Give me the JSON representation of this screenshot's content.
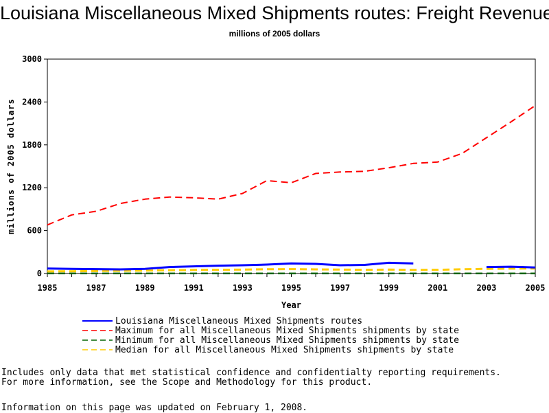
{
  "chart_data": {
    "type": "line",
    "title": "Louisiana Miscellaneous Mixed Shipments routes: Freight Revenue",
    "subtitle": "millions of 2005 dollars",
    "xlabel": "Year",
    "ylabel": "millions of 2005 dollars",
    "xlim": [
      1985,
      2005
    ],
    "ylim": [
      0,
      3000
    ],
    "xticks": [
      1985,
      1987,
      1989,
      1991,
      1993,
      1995,
      1997,
      1999,
      2001,
      2003,
      2005
    ],
    "yticks": [
      0,
      600,
      1200,
      1800,
      2400,
      3000
    ],
    "x": [
      1985,
      1986,
      1987,
      1988,
      1989,
      1990,
      1991,
      1992,
      1993,
      1994,
      1995,
      1996,
      1997,
      1998,
      1999,
      2000,
      2001,
      2002,
      2003,
      2004,
      2005
    ],
    "series": [
      {
        "name": "Louisiana Miscellaneous Mixed Shipments routes",
        "color": "#0000ff",
        "style": "solid",
        "values": [
          70,
          65,
          62,
          58,
          65,
          90,
          100,
          110,
          115,
          125,
          140,
          135,
          115,
          120,
          150,
          140,
          null,
          null,
          90,
          95,
          85
        ]
      },
      {
        "name": "Maximum for all Miscellaneous Mixed Shipments shipments by state",
        "color": "#ff0000",
        "style": "dashed",
        "values": [
          680,
          820,
          870,
          980,
          1040,
          1070,
          1060,
          1040,
          1120,
          1300,
          1270,
          1400,
          1420,
          1430,
          1480,
          1540,
          1560,
          1680,
          1900,
          2120,
          2350
        ]
      },
      {
        "name": "Minimum for all Miscellaneous Mixed Shipments shipments by state",
        "color": "#006400",
        "style": "dashed",
        "values": [
          1,
          1,
          1,
          1,
          1,
          1,
          1,
          1,
          1,
          1,
          1,
          1,
          1,
          1,
          1,
          1,
          1,
          1,
          1,
          1,
          1
        ]
      },
      {
        "name": "Median for all Miscellaneous Mixed Shipments shipments by state",
        "color": "#ffcc00",
        "style": "dashed",
        "values": [
          30,
          32,
          35,
          38,
          40,
          45,
          50,
          52,
          55,
          60,
          62,
          58,
          55,
          52,
          55,
          50,
          52,
          60,
          65,
          68,
          70
        ]
      }
    ],
    "grid": false,
    "legend_position": "bottom"
  },
  "notes": {
    "line1": "Includes only data that met statistical confidence and confidentialty reporting requirements.",
    "line2": "For more information, see the Scope and Methodology for this product."
  },
  "updated": "Information on this page was updated on February 1, 2008."
}
